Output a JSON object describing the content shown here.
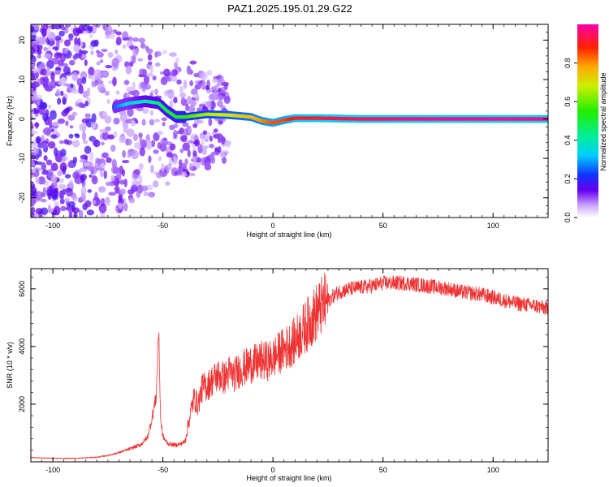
{
  "figure": {
    "title": "PAZ1.2025.195.01.29.G22"
  },
  "chart_data": [
    {
      "type": "heatmap",
      "xlabel": "Height of straight line (km)",
      "ylabel": "Frequency (Hz)",
      "xlim": [
        -110,
        125
      ],
      "ylim": [
        -25,
        24
      ],
      "xticks": [
        -100,
        -50,
        0,
        50,
        100
      ],
      "yticks": [
        -20,
        -10,
        0,
        10,
        20
      ],
      "colorbar": {
        "label": "Normalized spectral amplitude",
        "range": [
          0,
          1
        ],
        "ticks": [
          0.0,
          0.2,
          0.4,
          0.6,
          0.8
        ],
        "tick_labels": [
          "0.0",
          "0.2",
          "0.4",
          "0.6",
          "0.8"
        ]
      },
      "ridge": [
        {
          "x": -72,
          "y": 3,
          "a": 0.25
        },
        {
          "x": -65,
          "y": 4,
          "a": 0.35
        },
        {
          "x": -58,
          "y": 4.5,
          "a": 0.4
        },
        {
          "x": -52,
          "y": 4,
          "a": 0.45
        },
        {
          "x": -48,
          "y": 2,
          "a": 0.5
        },
        {
          "x": -44,
          "y": 0.5,
          "a": 0.5
        },
        {
          "x": -40,
          "y": 0.5,
          "a": 0.55
        },
        {
          "x": -30,
          "y": 1.2,
          "a": 0.65
        },
        {
          "x": -20,
          "y": 1.0,
          "a": 0.7
        },
        {
          "x": -10,
          "y": 0.5,
          "a": 0.75
        },
        {
          "x": -5,
          "y": -0.5,
          "a": 0.8
        },
        {
          "x": 0,
          "y": -1.0,
          "a": 0.85
        },
        {
          "x": 5,
          "y": -0.3,
          "a": 0.85
        },
        {
          "x": 10,
          "y": 0.2,
          "a": 0.9
        },
        {
          "x": 20,
          "y": 0.2,
          "a": 0.92
        },
        {
          "x": 40,
          "y": 0.0,
          "a": 0.95
        },
        {
          "x": 60,
          "y": 0.0,
          "a": 0.97
        },
        {
          "x": 80,
          "y": 0.0,
          "a": 0.98
        },
        {
          "x": 100,
          "y": 0.0,
          "a": 0.98
        },
        {
          "x": 125,
          "y": 0.0,
          "a": 0.98
        }
      ]
    },
    {
      "type": "line",
      "xlabel": "Height of straight line (km)",
      "ylabel": "SNR (10 * v/v)",
      "xlim": [
        -110,
        125
      ],
      "ylim": [
        0,
        6700
      ],
      "xticks": [
        -100,
        -50,
        0,
        50,
        100
      ],
      "yticks": [
        2000,
        4000,
        6000
      ],
      "series": [
        {
          "color": "#ee3333",
          "x": [
            -110,
            -100,
            -90,
            -80,
            -75,
            -70,
            -65,
            -60,
            -57,
            -55,
            -53,
            -52,
            -51,
            -50,
            -49,
            -48,
            -46,
            -44,
            -42,
            -40,
            -38,
            -36,
            -34,
            -32,
            -30,
            -28,
            -25,
            -22,
            -20,
            -18,
            -15,
            -12,
            -10,
            -8,
            -5,
            -2,
            0,
            3,
            6,
            10,
            13,
            16,
            20,
            25,
            30,
            35,
            40,
            45,
            50,
            55,
            60,
            65,
            70,
            75,
            80,
            85,
            90,
            95,
            100,
            105,
            110,
            115,
            120,
            125
          ],
          "y": [
            150,
            120,
            120,
            160,
            220,
            320,
            450,
            600,
            850,
            1500,
            2300,
            4650,
            1400,
            900,
            750,
            650,
            600,
            580,
            620,
            700,
            1500,
            2200,
            2000,
            2600,
            2600,
            2800,
            3000,
            2900,
            3100,
            3000,
            3200,
            3300,
            3400,
            3400,
            3500,
            3500,
            3600,
            3800,
            3950,
            4200,
            4500,
            4800,
            5200,
            5600,
            5900,
            6000,
            6050,
            6100,
            6200,
            6200,
            6200,
            6150,
            6100,
            6050,
            6000,
            5900,
            5850,
            5800,
            5700,
            5600,
            5500,
            5450,
            5400,
            5300
          ]
        }
      ]
    }
  ]
}
